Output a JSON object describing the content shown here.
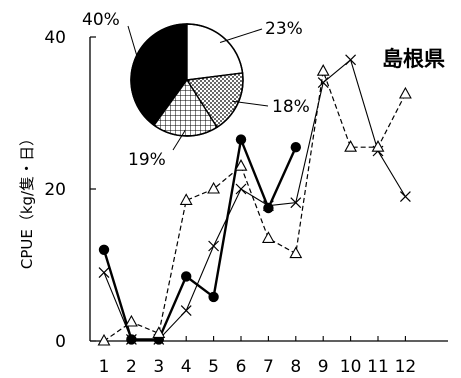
{
  "chart_data": [
    {
      "type": "line",
      "region_label": "島根県",
      "ylabel": "CPUE（kg/隻・日）",
      "ylim": [
        0,
        40
      ],
      "y_ticks": [
        "0",
        "20",
        "40"
      ],
      "x": [
        1,
        2,
        3,
        4,
        5,
        6,
        7,
        8,
        9,
        10,
        11,
        12
      ],
      "x_tick_labels": [
        "1",
        "2",
        "3",
        "4",
        "5",
        "6",
        "7",
        "8",
        "9",
        "10",
        "11",
        "12"
      ],
      "series": [
        {
          "marker": "filled-circle",
          "line": "solid",
          "values": [
            12.0,
            0.2,
            0.2,
            8.5,
            5.8,
            26.5,
            17.5,
            25.5,
            null,
            null,
            null,
            null
          ]
        },
        {
          "marker": "cross",
          "line": "solid-thin",
          "values": [
            9.0,
            0.2,
            0.2,
            4.0,
            12.5,
            20.0,
            17.8,
            18.2,
            34.0,
            37.0,
            25.0,
            19.0
          ]
        },
        {
          "marker": "open-triangle",
          "line": "dashed",
          "values": [
            0.0,
            2.5,
            1.0,
            18.5,
            20.0,
            23.0,
            13.5,
            11.5,
            35.5,
            25.5,
            25.5,
            32.5
          ]
        }
      ]
    },
    {
      "type": "pie",
      "values": [
        40,
        23,
        18,
        19
      ],
      "labels": [
        "40%",
        "23%",
        "18%",
        "19%"
      ],
      "fills": [
        "#000000",
        "#ffffff",
        "dots",
        "grid"
      ]
    }
  ]
}
